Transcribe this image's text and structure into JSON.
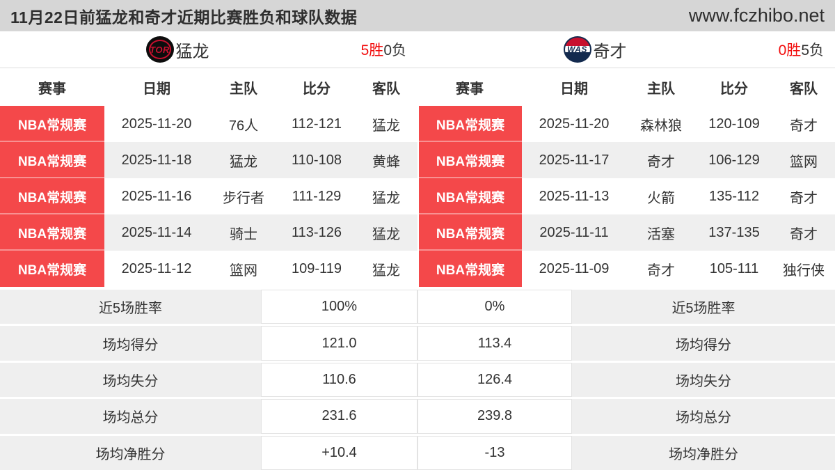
{
  "header": {
    "title": "11月22日前猛龙和奇才近期比赛胜负和球队数据",
    "site": "www.fczhibo.net"
  },
  "teams": {
    "left": {
      "abbr": "TOR",
      "name": "猛龙",
      "wins": "5胜",
      "losses": "0负"
    },
    "right": {
      "abbr": "WAS",
      "name": "奇才",
      "wins": "0胜",
      "losses": "5负"
    }
  },
  "table": {
    "headers": {
      "league": "赛事",
      "date": "日期",
      "home": "主队",
      "score": "比分",
      "away": "客队"
    }
  },
  "left_matches": [
    {
      "league": "NBA常规赛",
      "date": "2025-11-20",
      "home": "76人",
      "score": "112-121",
      "away": "猛龙"
    },
    {
      "league": "NBA常规赛",
      "date": "2025-11-18",
      "home": "猛龙",
      "score": "110-108",
      "away": "黄蜂"
    },
    {
      "league": "NBA常规赛",
      "date": "2025-11-16",
      "home": "步行者",
      "score": "111-129",
      "away": "猛龙"
    },
    {
      "league": "NBA常规赛",
      "date": "2025-11-14",
      "home": "骑士",
      "score": "113-126",
      "away": "猛龙"
    },
    {
      "league": "NBA常规赛",
      "date": "2025-11-12",
      "home": "篮网",
      "score": "109-119",
      "away": "猛龙"
    }
  ],
  "right_matches": [
    {
      "league": "NBA常规赛",
      "date": "2025-11-20",
      "home": "森林狼",
      "score": "120-109",
      "away": "奇才"
    },
    {
      "league": "NBA常规赛",
      "date": "2025-11-17",
      "home": "奇才",
      "score": "106-129",
      "away": "篮网"
    },
    {
      "league": "NBA常规赛",
      "date": "2025-11-13",
      "home": "火箭",
      "score": "135-112",
      "away": "奇才"
    },
    {
      "league": "NBA常规赛",
      "date": "2025-11-11",
      "home": "活塞",
      "score": "137-135",
      "away": "奇才"
    },
    {
      "league": "NBA常规赛",
      "date": "2025-11-09",
      "home": "奇才",
      "score": "105-111",
      "away": "独行侠"
    }
  ],
  "stats": {
    "rows": [
      {
        "label": "近5场胜率",
        "left": "100%",
        "right": "0%"
      },
      {
        "label": "场均得分",
        "left": "121.0",
        "right": "113.4"
      },
      {
        "label": "场均失分",
        "left": "110.6",
        "right": "126.4"
      },
      {
        "label": "场均总分",
        "left": "231.6",
        "right": "239.8"
      },
      {
        "label": "场均净胜分",
        "left": "+10.4",
        "right": "-13"
      }
    ]
  },
  "colors": {
    "badge_red": "#f4484a",
    "record_red": "#f20d0d",
    "row_gray": "#efefef",
    "topbar_gray": "#d6d6d6"
  }
}
